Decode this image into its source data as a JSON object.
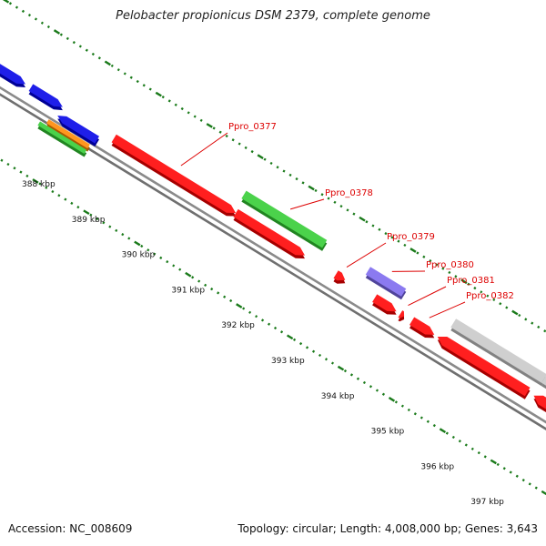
{
  "title": "Pelobacter propionicus DSM 2379, complete genome",
  "footer": {
    "accession": "Accession: NC_008609",
    "summary": "Topology: circular; Length: 4,008,000 bp; Genes: 3,643"
  },
  "colors": {
    "backbone": "#8a8a8a",
    "tick": "#1a7a1a",
    "label": "#dd0000",
    "red": "#ff0000",
    "blue": "#0000e6",
    "green": "#33cc33",
    "orange": "#ff8800",
    "purple": "#7b68ee",
    "gray": "#c8c8c8"
  },
  "kbp_labels": [
    "388 kbp",
    "389 kbp",
    "390 kbp",
    "391 kbp",
    "392 kbp",
    "393 kbp",
    "394 kbp",
    "395 kbp",
    "396 kbp",
    "397 kbp"
  ],
  "genes": [
    {
      "label": "",
      "color_key": "blue",
      "strand": "+",
      "row": 2
    },
    {
      "label": "",
      "color_key": "blue",
      "strand": "+",
      "row": 2
    },
    {
      "label": "",
      "color_key": "blue",
      "strand": "-",
      "row": 3
    },
    {
      "label": "",
      "color_key": "orange",
      "strand": "",
      "row": 4
    },
    {
      "label": "",
      "color_key": "green",
      "strand": "",
      "row": 5
    },
    {
      "label": "Ppro_0377",
      "color_key": "red",
      "strand": "+",
      "row": 1
    },
    {
      "label": "",
      "color_key": "red",
      "strand": "+",
      "row": 1
    },
    {
      "label": "Ppro_0378",
      "color_key": "green",
      "strand": "",
      "row": 0
    },
    {
      "label": "Ppro_0379",
      "color_key": "red",
      "strand": "+",
      "row": 1
    },
    {
      "label": "Ppro_0380",
      "color_key": "purple",
      "strand": "",
      "row": 0
    },
    {
      "label": "",
      "color_key": "red",
      "strand": "+",
      "row": 1
    },
    {
      "label": "Ppro_0381",
      "color_key": "red",
      "strand": "+",
      "row": 1
    },
    {
      "label": "Ppro_0382",
      "color_key": "red",
      "strand": "+",
      "row": 1
    },
    {
      "label": "",
      "color_key": "gray",
      "strand": "",
      "row": 0
    },
    {
      "label": "",
      "color_key": "red",
      "strand": "-",
      "row": 1
    },
    {
      "label": "",
      "color_key": "gray",
      "strand": "",
      "row": 0
    },
    {
      "label": "",
      "color_key": "red",
      "strand": "-",
      "row": 1
    }
  ]
}
